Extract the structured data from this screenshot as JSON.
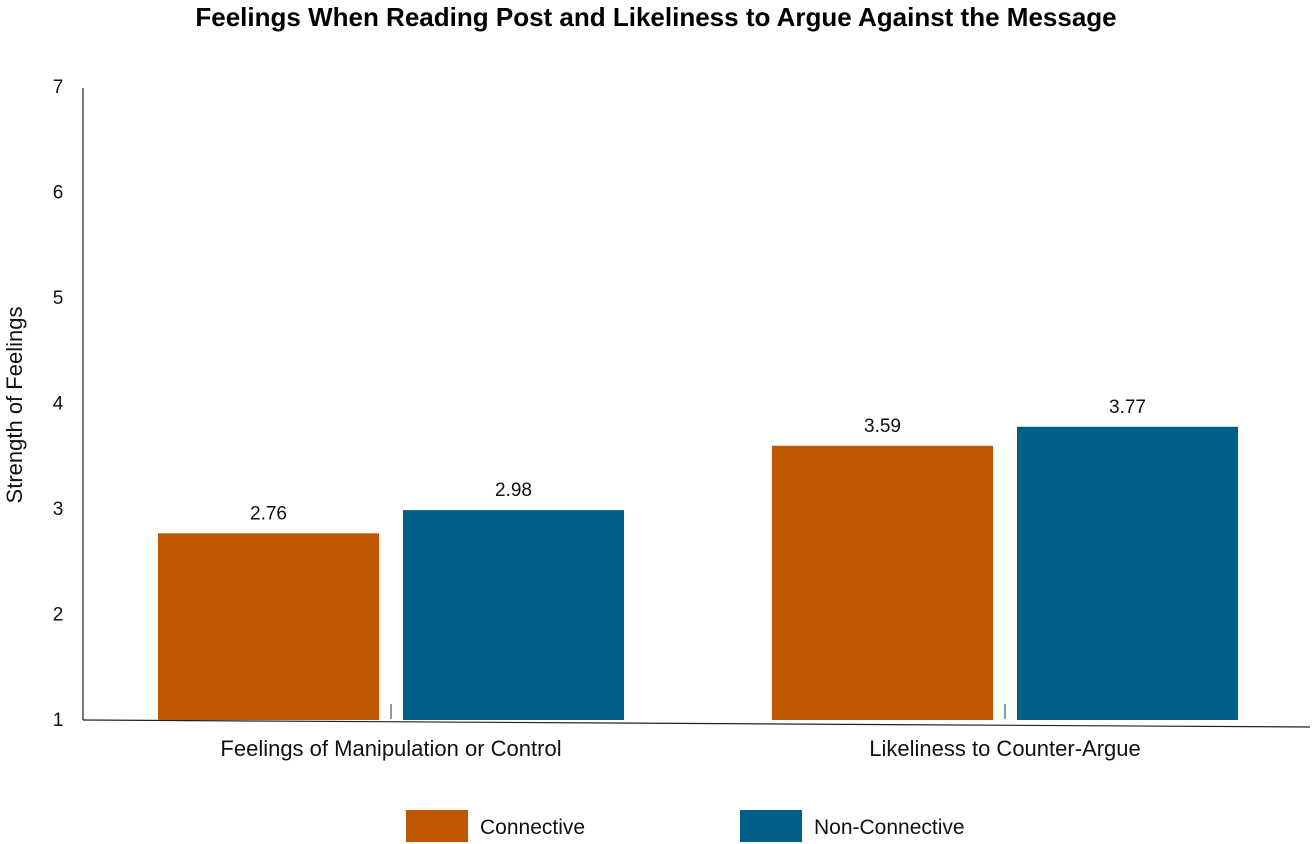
{
  "chart_data": {
    "type": "bar",
    "title": "Feelings When Reading Post and Likeliness to Argue Against the Message",
    "xlabel": "",
    "ylabel": "Strength of Feelings",
    "ylim": [
      1,
      7
    ],
    "yticks": [
      "1",
      "2",
      "3",
      "4",
      "5",
      "6",
      "7"
    ],
    "categories": [
      "Feelings of Manipulation or Control",
      "Likeliness to Counter-Argue"
    ],
    "series": [
      {
        "name": "Connective",
        "values": [
          2.76,
          3.59
        ],
        "labels": [
          "2.76",
          "3.59"
        ],
        "color": "#BF5700"
      },
      {
        "name": "Non-Connective",
        "values": [
          2.98,
          3.77
        ],
        "labels": [
          "2.98",
          "3.77"
        ],
        "color": "#005F86"
      }
    ],
    "grid": false,
    "legend_position": "bottom"
  }
}
